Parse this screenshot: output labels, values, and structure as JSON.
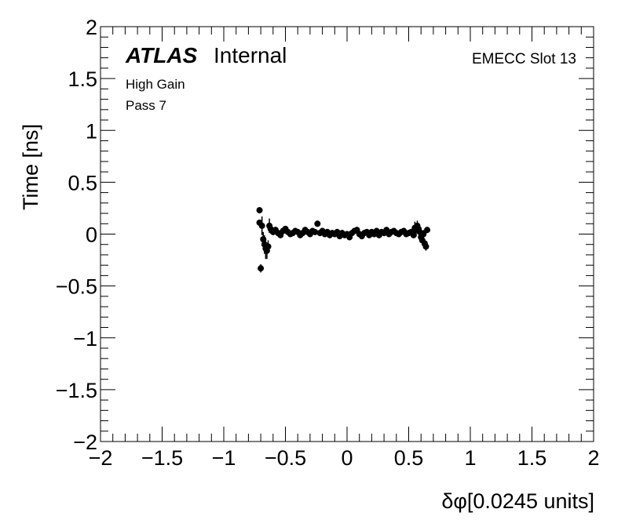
{
  "chart_data": {
    "type": "scatter",
    "title": "",
    "xlabel": "δφ[0.0245 units]",
    "ylabel": "Time [ns]",
    "xlim": [
      -2,
      2
    ],
    "ylim": [
      -2,
      2
    ],
    "x_ticks": [
      -2,
      -1.5,
      -1,
      -0.5,
      0,
      0.5,
      1,
      1.5,
      2
    ],
    "x_tick_labels": [
      "−2",
      "−1.5",
      "−1",
      "−0.5",
      "0",
      "0.5",
      "1",
      "1.5",
      "2"
    ],
    "y_ticks": [
      -2,
      -1.5,
      -1,
      -0.5,
      0,
      0.5,
      1,
      1.5,
      2
    ],
    "y_tick_labels": [
      "−2",
      "−1.5",
      "−1",
      "−0.5",
      "0",
      "0.5",
      "1",
      "1.5",
      "2"
    ],
    "grid": false,
    "marker_color": "#000000",
    "annotations": {
      "atlas_bold": "ATLAS",
      "atlas_status": "Internal",
      "gain": "High Gain",
      "pass": "Pass 7",
      "slot": "EMECC Slot 13"
    },
    "series": [
      {
        "x": [
          -0.71,
          -0.71,
          -0.7,
          -0.69,
          -0.68,
          -0.67,
          -0.66,
          -0.65,
          -0.64,
          -0.63,
          -0.62,
          -0.6,
          -0.58,
          -0.56,
          -0.54,
          -0.52,
          -0.5,
          -0.48,
          -0.46,
          -0.44,
          -0.42,
          -0.4,
          -0.38,
          -0.36,
          -0.34,
          -0.32,
          -0.3,
          -0.28,
          -0.26,
          -0.24,
          -0.22,
          -0.2,
          -0.18,
          -0.16,
          -0.14,
          -0.12,
          -0.1,
          -0.08,
          -0.06,
          -0.04,
          -0.02,
          0.0,
          0.02,
          0.04,
          0.06,
          0.08,
          0.1,
          0.12,
          0.14,
          0.16,
          0.18,
          0.2,
          0.22,
          0.24,
          0.26,
          0.28,
          0.3,
          0.32,
          0.34,
          0.36,
          0.38,
          0.4,
          0.42,
          0.44,
          0.46,
          0.48,
          0.5,
          0.52,
          0.54,
          0.55,
          0.56,
          0.57,
          0.58,
          0.59,
          0.6,
          0.61,
          0.62,
          0.63,
          0.64,
          0.65
        ],
        "y": [
          0.23,
          0.11,
          -0.33,
          0.08,
          -0.05,
          -0.1,
          -0.14,
          -0.16,
          -0.12,
          0.08,
          0.05,
          0.02,
          0.04,
          0.01,
          -0.01,
          0.03,
          0.05,
          0.02,
          0.0,
          0.01,
          0.03,
          0.02,
          -0.01,
          0.01,
          0.04,
          0.02,
          0.0,
          0.03,
          0.02,
          0.1,
          0.01,
          0.03,
          0.0,
          0.02,
          -0.01,
          0.01,
          0.0,
          0.02,
          -0.02,
          0.01,
          -0.01,
          0.0,
          -0.03,
          0.01,
          0.03,
          0.04,
          0.0,
          -0.02,
          0.01,
          0.02,
          -0.01,
          0.02,
          0.0,
          0.03,
          -0.01,
          0.02,
          0.01,
          0.04,
          0.0,
          0.02,
          0.03,
          0.01,
          0.0,
          0.02,
          0.03,
          0.0,
          0.01,
          0.02,
          -0.01,
          0.06,
          0.04,
          0.08,
          0.05,
          0.02,
          -0.03,
          -0.06,
          0.0,
          -0.09,
          -0.12,
          0.04
        ],
        "yerr": [
          0.03,
          0.03,
          0.04,
          0.09,
          0.07,
          0.09,
          0.1,
          0.08,
          0.06,
          0.07,
          0.04,
          0.03,
          0.03,
          0.03,
          0.03,
          0.03,
          0.03,
          0.03,
          0.03,
          0.03,
          0.03,
          0.03,
          0.03,
          0.03,
          0.03,
          0.03,
          0.03,
          0.03,
          0.03,
          0.03,
          0.03,
          0.03,
          0.03,
          0.03,
          0.03,
          0.03,
          0.03,
          0.03,
          0.03,
          0.03,
          0.03,
          0.03,
          0.03,
          0.03,
          0.03,
          0.03,
          0.03,
          0.03,
          0.03,
          0.03,
          0.03,
          0.03,
          0.03,
          0.03,
          0.03,
          0.03,
          0.03,
          0.03,
          0.03,
          0.03,
          0.03,
          0.03,
          0.03,
          0.03,
          0.03,
          0.03,
          0.03,
          0.03,
          0.03,
          0.06,
          0.06,
          0.05,
          0.05,
          0.05,
          0.05,
          0.05,
          0.04,
          0.04,
          0.04,
          0.03
        ]
      }
    ]
  }
}
